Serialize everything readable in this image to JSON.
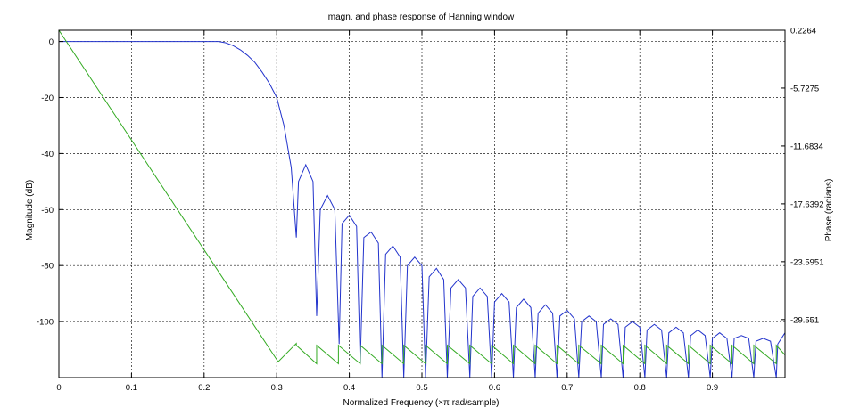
{
  "chart_data": {
    "type": "line",
    "title": "magn. and phase response of Hanning window",
    "xlabel": "Normalized Frequency (×π rad/sample)",
    "ylabel_left": "Magnitude (dB)",
    "ylabel_right": "Phase (radians)",
    "xlim": [
      0,
      1
    ],
    "ylim_left": [
      -120,
      4
    ],
    "ylim_right": [
      -35.525,
      0.2264
    ],
    "grid": true,
    "legend": "none",
    "x_ticks": [
      "0",
      "0.1",
      "0.2",
      "0.3",
      "0.4",
      "0.5",
      "0.6",
      "0.7",
      "0.8",
      "0.9"
    ],
    "x_tick_values": [
      0,
      0.1,
      0.2,
      0.3,
      0.4,
      0.5,
      0.6,
      0.7,
      0.8,
      0.9
    ],
    "y_ticks_left": [
      "0",
      "-20",
      "-40",
      "-60",
      "-80",
      "-100"
    ],
    "y_tick_values_left": [
      0,
      -20,
      -40,
      -60,
      -80,
      -100
    ],
    "y_ticks_right": [
      "0.2264",
      "-5.7275",
      "-11.6834",
      "-17.6392",
      "-23.5951",
      "-29.551"
    ],
    "y_tick_values_right": [
      0.2264,
      -5.7275,
      -11.6834,
      -17.6392,
      -23.5951,
      -29.551
    ],
    "series": [
      {
        "axis": "left",
        "color": "#2233cc",
        "x": [
          0,
          0.22,
          0.23,
          0.24,
          0.25,
          0.26,
          0.27,
          0.28,
          0.29,
          0.3,
          0.31,
          0.32,
          0.327,
          0.33,
          0.34,
          0.35,
          0.355,
          0.36,
          0.37,
          0.38,
          0.386,
          0.39,
          0.4,
          0.41,
          0.415,
          0.42,
          0.43,
          0.44,
          0.445,
          0.45,
          0.46,
          0.47,
          0.475,
          0.48,
          0.49,
          0.5,
          0.505,
          0.51,
          0.52,
          0.53,
          0.535,
          0.54,
          0.55,
          0.56,
          0.566,
          0.57,
          0.58,
          0.59,
          0.596,
          0.6,
          0.61,
          0.62,
          0.626,
          0.63,
          0.64,
          0.65,
          0.656,
          0.66,
          0.67,
          0.68,
          0.686,
          0.69,
          0.7,
          0.71,
          0.716,
          0.72,
          0.73,
          0.74,
          0.747,
          0.75,
          0.76,
          0.77,
          0.777,
          0.78,
          0.79,
          0.8,
          0.807,
          0.81,
          0.82,
          0.83,
          0.837,
          0.84,
          0.85,
          0.86,
          0.867,
          0.87,
          0.88,
          0.89,
          0.897,
          0.9,
          0.91,
          0.92,
          0.927,
          0.93,
          0.94,
          0.95,
          0.957,
          0.96,
          0.97,
          0.98,
          0.988,
          0.99,
          1.0
        ],
        "y": [
          0,
          0,
          -0.5,
          -1.5,
          -3,
          -5,
          -7.5,
          -11,
          -15,
          -20,
          -30,
          -45,
          -70,
          -50,
          -44,
          -50,
          -98,
          -60,
          -55,
          -60,
          -108,
          -65,
          -62,
          -66,
          -115,
          -70,
          -68,
          -72,
          -120,
          -76,
          -73,
          -77,
          -120,
          -80,
          -77,
          -80,
          -120,
          -84,
          -81,
          -85,
          -120,
          -88,
          -85,
          -88,
          -120,
          -91,
          -88,
          -91,
          -120,
          -93,
          -90,
          -93,
          -120,
          -95,
          -92,
          -95,
          -120,
          -97,
          -94,
          -97,
          -120,
          -98,
          -96,
          -99,
          -120,
          -100,
          -98,
          -100,
          -120,
          -101,
          -99,
          -101,
          -120,
          -102,
          -100,
          -102,
          -120,
          -103,
          -101,
          -103,
          -120,
          -104,
          -102,
          -104,
          -120,
          -105,
          -103,
          -105,
          -120,
          -106,
          -104,
          -106,
          -120,
          -106,
          -105,
          -106,
          -120,
          -107,
          -106,
          -107,
          -120,
          -108,
          -104
        ]
      },
      {
        "axis": "right",
        "color": "#33aa22",
        "x": [
          0,
          0.302,
          0.302,
          0.327,
          0.327,
          0.355,
          0.355,
          0.385,
          0.385,
          0.415,
          0.415,
          0.445,
          0.445,
          0.475,
          0.475,
          0.505,
          0.505,
          0.535,
          0.535,
          0.566,
          0.566,
          0.596,
          0.596,
          0.626,
          0.626,
          0.656,
          0.656,
          0.686,
          0.686,
          0.716,
          0.716,
          0.747,
          0.747,
          0.777,
          0.777,
          0.807,
          0.807,
          0.837,
          0.837,
          0.867,
          0.867,
          0.897,
          0.897,
          0.927,
          0.927,
          0.957,
          0.957,
          0.988,
          0.988,
          1.0
        ],
        "y": [
          0.2264,
          -33.9,
          -33.9,
          -32.0,
          -32.2,
          -34.1,
          -32.2,
          -34.1,
          -32.2,
          -34.1,
          -32.2,
          -34.1,
          -32.2,
          -34.1,
          -32.2,
          -34.1,
          -32.2,
          -34.1,
          -32.2,
          -34.1,
          -32.2,
          -34.1,
          -32.2,
          -34.1,
          -32.2,
          -34.1,
          -32.2,
          -34.1,
          -32.2,
          -34.1,
          -32.2,
          -34.1,
          -32.2,
          -34.1,
          -32.2,
          -34.1,
          -32.2,
          -34.1,
          -32.2,
          -34.1,
          -32.2,
          -34.1,
          -32.2,
          -34.1,
          -32.2,
          -34.1,
          -32.2,
          -34.1,
          -32.2,
          -33.2
        ]
      }
    ]
  }
}
